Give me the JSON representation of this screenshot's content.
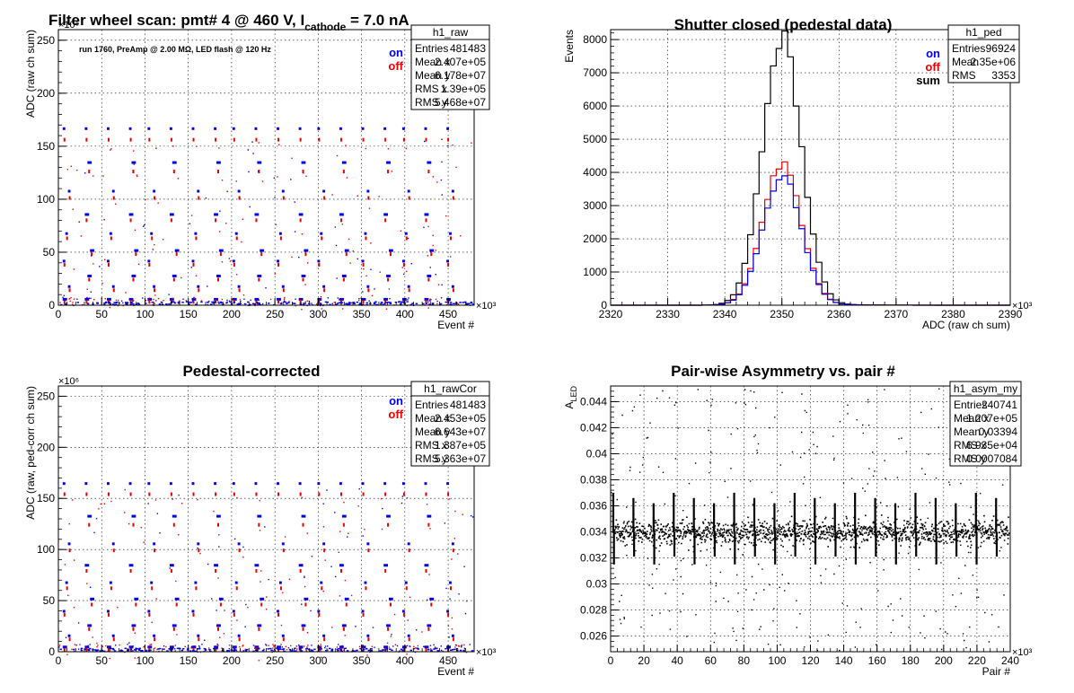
{
  "colors": {
    "on": "#0000ee",
    "off": "#ee0000",
    "sum": "#000000",
    "axis": "#000000",
    "grid": "#000000"
  },
  "chart_data": [
    {
      "id": "raw",
      "type": "scatter",
      "title_main": "Filter wheel scan: pmt#   4 @   460 V, I",
      "title_sub": "cathode",
      "title_tail": " = 7.0 nA",
      "annotation": "run 1760, PreAmp @ 2.00 MΩ, LED flash @  120 Hz",
      "xlabel": "Event #",
      "ylabel": "ADC (raw ch sum)",
      "x_exponent": "×10³",
      "y_exponent": "×10⁶",
      "xlim": [
        0,
        480
      ],
      "ylim": [
        0,
        260
      ],
      "xticks": [
        0,
        50,
        100,
        150,
        200,
        250,
        300,
        350,
        400,
        450
      ],
      "yticks": [
        0,
        50,
        100,
        150,
        200,
        250
      ],
      "grid": true,
      "legend": [
        {
          "label": "on",
          "color": "#0000ee"
        },
        {
          "label": "off",
          "color": "#ee0000"
        }
      ],
      "stats": {
        "title": "h1_raw",
        "rows": [
          [
            "Entries",
            "481483"
          ],
          [
            "Mean x",
            "2.407e+05"
          ],
          [
            "Mean y",
            "6.178e+07"
          ],
          [
            "RMS x",
            "1.39e+05"
          ],
          [
            "RMS y",
            "5.468e+07"
          ]
        ]
      },
      "series": [
        {
          "name": "on",
          "step_events": 24.5,
          "levels": [
            167,
            135,
            108,
            86,
            68,
            52,
            42,
            28,
            18,
            6
          ]
        },
        {
          "name": "off",
          "step_events": 24.5,
          "levels": [
            157,
            127,
            102,
            81,
            64,
            49,
            39,
            25,
            15,
            4
          ]
        }
      ]
    },
    {
      "id": "ped",
      "type": "line",
      "title": "Shutter closed (pedestal data)",
      "xlabel": "ADC (raw ch sum)",
      "ylabel": "Events",
      "x_exponent": "×10³",
      "xlim": [
        2320,
        2390
      ],
      "ylim": [
        0,
        8300
      ],
      "xticks": [
        2320,
        2330,
        2340,
        2350,
        2360,
        2370,
        2380,
        2390
      ],
      "yticks": [
        0,
        1000,
        2000,
        3000,
        4000,
        5000,
        6000,
        7000,
        8000
      ],
      "grid": true,
      "legend": [
        {
          "label": "on",
          "color": "#0000ee"
        },
        {
          "label": "off",
          "color": "#ee0000"
        },
        {
          "label": "sum",
          "color": "#000000"
        }
      ],
      "stats": {
        "title": "h1_ped",
        "rows": [
          [
            "Entries",
            "96924"
          ],
          [
            "Mean",
            "2.35e+06"
          ],
          [
            "RMS",
            "3353"
          ]
        ]
      },
      "series": [
        {
          "name": "sum",
          "mean": 2350,
          "sigma": 3.35,
          "peak": 8050
        },
        {
          "name": "off",
          "mean": 2350,
          "sigma": 3.35,
          "peak": 4200
        },
        {
          "name": "on",
          "mean": 2350,
          "sigma": 3.35,
          "peak": 3900
        }
      ]
    },
    {
      "id": "rawCor",
      "type": "scatter",
      "title": "Pedestal-corrected",
      "xlabel": "Event #",
      "ylabel": "ADC (raw, ped-corr ch sum)",
      "x_exponent": "×10³",
      "y_exponent": "×10⁶",
      "xlim": [
        0,
        480
      ],
      "ylim": [
        0,
        260
      ],
      "xticks": [
        0,
        50,
        100,
        150,
        200,
        250,
        300,
        350,
        400,
        450
      ],
      "yticks": [
        0,
        50,
        100,
        150,
        200,
        250
      ],
      "grid": true,
      "legend": [
        {
          "label": "on",
          "color": "#0000ee"
        },
        {
          "label": "off",
          "color": "#ee0000"
        }
      ],
      "stats": {
        "title": "h1_rawCor",
        "rows": [
          [
            "Entries",
            "481483"
          ],
          [
            "Mean x",
            "2.453e+05"
          ],
          [
            "Mean y",
            "6.643e+07"
          ],
          [
            "RMS x",
            "1.387e+05"
          ],
          [
            "RMS y",
            "5.363e+07"
          ]
        ]
      },
      "series": [
        {
          "name": "on",
          "step_events": 24.5,
          "levels": [
            165,
            133,
            106,
            85,
            68,
            52,
            40,
            26,
            16,
            5
          ]
        },
        {
          "name": "off",
          "step_events": 24.5,
          "levels": [
            155,
            125,
            100,
            80,
            63,
            47,
            37,
            23,
            13,
            3
          ]
        }
      ]
    },
    {
      "id": "asym",
      "type": "scatter",
      "title": "Pair-wise Asymmetry vs. pair #",
      "xlabel": "Pair #",
      "ylabel": "A",
      "ylabel_sub": "LED",
      "x_exponent": "×10³",
      "xlim": [
        0,
        240
      ],
      "ylim": [
        0.0248,
        0.0452
      ],
      "xticks": [
        0,
        20,
        40,
        60,
        80,
        100,
        120,
        140,
        160,
        180,
        200,
        220,
        240
      ],
      "yticks": [
        0.026,
        0.028,
        0.03,
        0.032,
        0.034,
        0.036,
        0.038,
        0.04,
        0.042,
        0.044
      ],
      "ytick_labels": [
        "0.026",
        "0.028",
        "0.03",
        "0.032",
        "0.034",
        "0.036",
        "0.038",
        "0.04",
        "0.042",
        "0.044"
      ],
      "grid": true,
      "stats": {
        "title": "h1_asym_my",
        "rows": [
          [
            "Entries",
            "240741"
          ],
          [
            "Mean x",
            "1.207e+05"
          ],
          [
            "Mean y",
            "0.03394"
          ],
          [
            "RMS x",
            "6.935e+04"
          ],
          [
            "RMS y",
            "0.0007084"
          ]
        ]
      },
      "series": [
        {
          "name": "band",
          "center": 0.034,
          "spread": 0.00045,
          "spike_every": 12.1,
          "spike_up": 0.037,
          "spike_down": 0.0315
        }
      ]
    }
  ]
}
